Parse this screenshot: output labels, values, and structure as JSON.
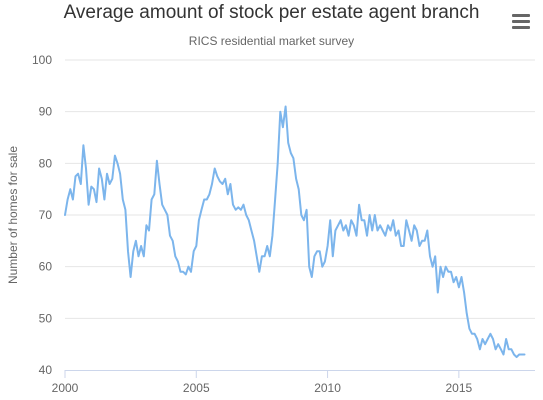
{
  "chart_data": {
    "type": "line",
    "title": "Average amount of stock per estate agent branch",
    "subtitle": "RICS residential market survey",
    "xlabel": "",
    "ylabel": "Number of homes for sale",
    "xlim": [
      2000,
      2017.9
    ],
    "ylim": [
      40,
      100
    ],
    "x_ticks": [
      "2000",
      "2005",
      "2010",
      "2015"
    ],
    "y_ticks": [
      "40",
      "50",
      "60",
      "70",
      "80",
      "90",
      "100"
    ],
    "grid": "horizontal",
    "legend": "none",
    "series": [
      {
        "color": "#7cb5ec",
        "points": [
          [
            2000.0,
            70.0
          ],
          [
            2000.1,
            73.0
          ],
          [
            2000.2,
            75.0
          ],
          [
            2000.3,
            73.0
          ],
          [
            2000.4,
            77.5
          ],
          [
            2000.5,
            78.0
          ],
          [
            2000.6,
            76.0
          ],
          [
            2000.7,
            83.5
          ],
          [
            2000.8,
            79.0
          ],
          [
            2000.9,
            72.0
          ],
          [
            2001.0,
            75.5
          ],
          [
            2001.1,
            75.0
          ],
          [
            2001.2,
            72.5
          ],
          [
            2001.3,
            79.0
          ],
          [
            2001.4,
            77.0
          ],
          [
            2001.5,
            73.0
          ],
          [
            2001.6,
            78.0
          ],
          [
            2001.7,
            76.0
          ],
          [
            2001.8,
            77.0
          ],
          [
            2001.9,
            81.5
          ],
          [
            2002.0,
            80.0
          ],
          [
            2002.1,
            78.0
          ],
          [
            2002.2,
            73.0
          ],
          [
            2002.3,
            71.0
          ],
          [
            2002.4,
            63.0
          ],
          [
            2002.5,
            58.0
          ],
          [
            2002.6,
            63.0
          ],
          [
            2002.7,
            65.0
          ],
          [
            2002.8,
            62.0
          ],
          [
            2002.9,
            64.0
          ],
          [
            2003.0,
            62.0
          ],
          [
            2003.1,
            68.0
          ],
          [
            2003.2,
            67.0
          ],
          [
            2003.3,
            73.0
          ],
          [
            2003.4,
            74.0
          ],
          [
            2003.5,
            80.5
          ],
          [
            2003.6,
            76.0
          ],
          [
            2003.7,
            72.0
          ],
          [
            2003.8,
            71.0
          ],
          [
            2003.9,
            70.0
          ],
          [
            2004.0,
            66.0
          ],
          [
            2004.1,
            65.0
          ],
          [
            2004.2,
            62.0
          ],
          [
            2004.3,
            61.0
          ],
          [
            2004.4,
            59.0
          ],
          [
            2004.5,
            59.0
          ],
          [
            2004.6,
            58.5
          ],
          [
            2004.7,
            60.0
          ],
          [
            2004.8,
            59.0
          ],
          [
            2004.9,
            63.0
          ],
          [
            2005.0,
            64.0
          ],
          [
            2005.1,
            69.0
          ],
          [
            2005.2,
            71.0
          ],
          [
            2005.3,
            73.0
          ],
          [
            2005.4,
            73.0
          ],
          [
            2005.5,
            74.0
          ],
          [
            2005.6,
            76.0
          ],
          [
            2005.7,
            79.0
          ],
          [
            2005.8,
            77.5
          ],
          [
            2005.9,
            76.5
          ],
          [
            2006.0,
            76.0
          ],
          [
            2006.1,
            77.0
          ],
          [
            2006.2,
            74.0
          ],
          [
            2006.3,
            76.0
          ],
          [
            2006.4,
            72.0
          ],
          [
            2006.5,
            71.0
          ],
          [
            2006.6,
            71.5
          ],
          [
            2006.7,
            71.0
          ],
          [
            2006.8,
            72.0
          ],
          [
            2006.9,
            70.0
          ],
          [
            2007.0,
            69.0
          ],
          [
            2007.1,
            67.0
          ],
          [
            2007.2,
            65.0
          ],
          [
            2007.3,
            62.0
          ],
          [
            2007.4,
            59.0
          ],
          [
            2007.5,
            62.0
          ],
          [
            2007.6,
            62.0
          ],
          [
            2007.7,
            64.0
          ],
          [
            2007.8,
            62.0
          ],
          [
            2007.9,
            66.0
          ],
          [
            2008.0,
            73.0
          ],
          [
            2008.1,
            80.0
          ],
          [
            2008.2,
            90.0
          ],
          [
            2008.3,
            87.0
          ],
          [
            2008.4,
            91.0
          ],
          [
            2008.5,
            84.0
          ],
          [
            2008.6,
            82.0
          ],
          [
            2008.7,
            81.0
          ],
          [
            2008.8,
            77.0
          ],
          [
            2008.9,
            75.0
          ],
          [
            2009.0,
            70.0
          ],
          [
            2009.1,
            69.0
          ],
          [
            2009.2,
            71.0
          ],
          [
            2009.3,
            60.0
          ],
          [
            2009.4,
            58.0
          ],
          [
            2009.5,
            62.0
          ],
          [
            2009.6,
            63.0
          ],
          [
            2009.7,
            63.0
          ],
          [
            2009.8,
            60.0
          ],
          [
            2009.9,
            61.0
          ],
          [
            2010.0,
            64.0
          ],
          [
            2010.1,
            69.0
          ],
          [
            2010.2,
            62.0
          ],
          [
            2010.3,
            67.0
          ],
          [
            2010.4,
            68.0
          ],
          [
            2010.5,
            69.0
          ],
          [
            2010.6,
            67.0
          ],
          [
            2010.7,
            68.0
          ],
          [
            2010.8,
            66.0
          ],
          [
            2010.9,
            69.0
          ],
          [
            2011.0,
            68.0
          ],
          [
            2011.1,
            66.0
          ],
          [
            2011.2,
            72.0
          ],
          [
            2011.3,
            69.0
          ],
          [
            2011.4,
            69.0
          ],
          [
            2011.5,
            66.0
          ],
          [
            2011.6,
            70.0
          ],
          [
            2011.7,
            67.0
          ],
          [
            2011.8,
            70.0
          ],
          [
            2011.9,
            67.0
          ],
          [
            2012.0,
            68.0
          ],
          [
            2012.1,
            67.0
          ],
          [
            2012.2,
            66.0
          ],
          [
            2012.3,
            68.0
          ],
          [
            2012.4,
            67.0
          ],
          [
            2012.5,
            69.0
          ],
          [
            2012.6,
            66.0
          ],
          [
            2012.7,
            67.0
          ],
          [
            2012.8,
            64.0
          ],
          [
            2012.9,
            64.0
          ],
          [
            2013.0,
            69.0
          ],
          [
            2013.1,
            67.0
          ],
          [
            2013.2,
            65.0
          ],
          [
            2013.3,
            68.0
          ],
          [
            2013.4,
            67.0
          ],
          [
            2013.5,
            64.0
          ],
          [
            2013.6,
            65.0
          ],
          [
            2013.7,
            65.0
          ],
          [
            2013.8,
            67.0
          ],
          [
            2013.9,
            62.0
          ],
          [
            2014.0,
            60.0
          ],
          [
            2014.1,
            62.0
          ],
          [
            2014.2,
            55.0
          ],
          [
            2014.3,
            60.0
          ],
          [
            2014.4,
            58.0
          ],
          [
            2014.5,
            60.0
          ],
          [
            2014.6,
            59.0
          ],
          [
            2014.7,
            59.0
          ],
          [
            2014.8,
            57.0
          ],
          [
            2014.9,
            58.0
          ],
          [
            2015.0,
            56.0
          ],
          [
            2015.1,
            58.0
          ],
          [
            2015.2,
            55.0
          ],
          [
            2015.3,
            51.0
          ],
          [
            2015.4,
            48.0
          ],
          [
            2015.5,
            47.0
          ],
          [
            2015.6,
            47.0
          ],
          [
            2015.7,
            46.0
          ],
          [
            2015.8,
            44.0
          ],
          [
            2015.9,
            46.0
          ],
          [
            2016.0,
            45.0
          ],
          [
            2016.1,
            46.0
          ],
          [
            2016.2,
            47.0
          ],
          [
            2016.3,
            46.0
          ],
          [
            2016.4,
            44.0
          ],
          [
            2016.5,
            45.0
          ],
          [
            2016.6,
            44.0
          ],
          [
            2016.7,
            43.0
          ],
          [
            2016.8,
            46.0
          ],
          [
            2016.9,
            44.0
          ],
          [
            2017.0,
            44.0
          ],
          [
            2017.1,
            43.0
          ],
          [
            2017.2,
            42.5
          ],
          [
            2017.3,
            43.0
          ],
          [
            2017.4,
            43.0
          ],
          [
            2017.5,
            43.0
          ]
        ]
      }
    ]
  },
  "menu": {
    "icon": "hamburger-menu-icon",
    "color": "#666666"
  }
}
